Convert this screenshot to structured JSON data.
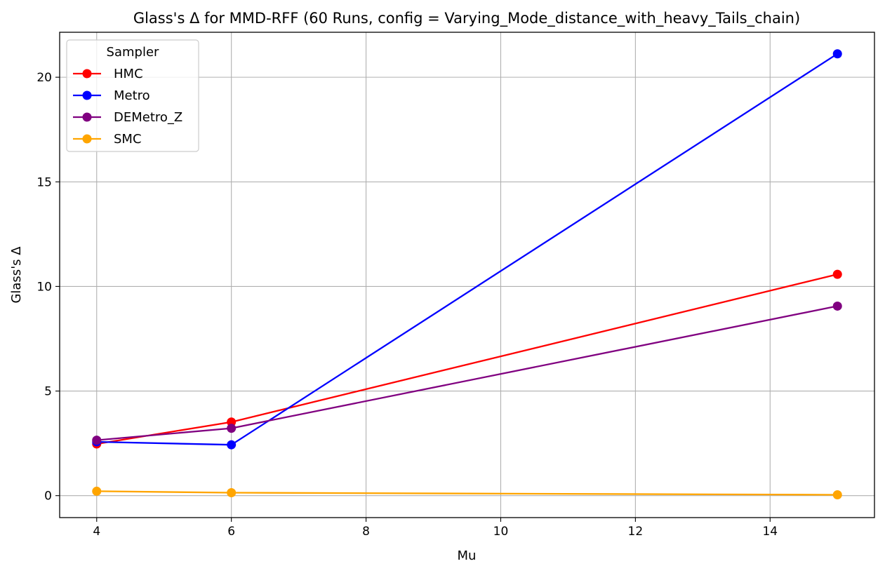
{
  "chart_data": {
    "type": "line",
    "title": "Glass's Δ for MMD-RFF (60 Runs, config = Varying_Mode_distance_with_heavy_Tails_chain)",
    "xlabel": "Mu",
    "ylabel": "Glass's Δ",
    "x": [
      4,
      6,
      15
    ],
    "xlim": [
      3.45,
      15.55
    ],
    "ylim": [
      -1.05,
      22.15
    ],
    "xticks": [
      4,
      6,
      8,
      10,
      12,
      14
    ],
    "yticks": [
      0,
      5,
      10,
      15,
      20
    ],
    "grid": true,
    "legend": {
      "title": "Sampler",
      "placement": "top-left"
    },
    "series": [
      {
        "name": "HMC",
        "color": "#ff0000",
        "values": [
          2.47,
          3.52,
          10.58
        ]
      },
      {
        "name": "Metro",
        "color": "#0000ff",
        "values": [
          2.57,
          2.43,
          21.12
        ]
      },
      {
        "name": "DEMetro_Z",
        "color": "#800080",
        "values": [
          2.65,
          3.22,
          9.06
        ]
      },
      {
        "name": "SMC",
        "color": "#ffa500",
        "values": [
          0.21,
          0.14,
          0.04
        ]
      }
    ]
  }
}
